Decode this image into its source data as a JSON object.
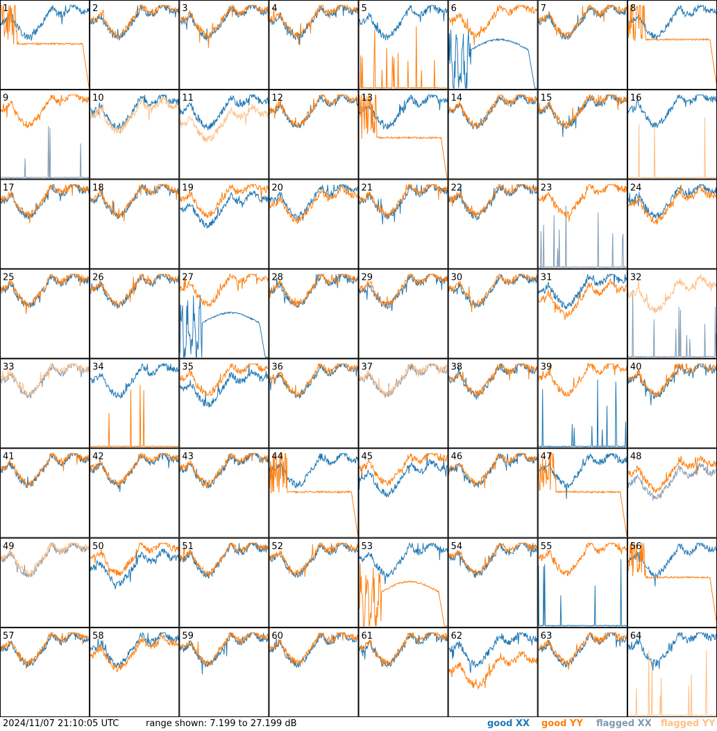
{
  "footer": {
    "timestamp": "2024/11/07 21:10:05 UTC",
    "range_text": "range shown: 7.199 to 27.199 dB"
  },
  "legend": {
    "good_xx": "good XX",
    "good_yy": "good YY",
    "flagged_xx": "flagged XX",
    "flagged_yy": "flagged YY"
  },
  "colors": {
    "good_xx": "#1f77b4",
    "good_yy": "#ff7f0e",
    "flagged_xx": "#7f99b2",
    "flagged_yy": "#ffbf86"
  },
  "chart_data": {
    "type": "line",
    "title": "",
    "xlabel": "",
    "ylabel": "",
    "ylim": [
      7.199,
      27.199
    ],
    "grid": "8x8 small multiples, no gridlines",
    "series_names": [
      "good XX",
      "good YY",
      "flagged XX",
      "flagged YY"
    ],
    "panels": [
      {
        "label": "1",
        "xx": "good",
        "yy": "good",
        "xx_shape": "bandpass",
        "yy_shape": "plateau",
        "xx_level": 0.6,
        "yy_level": 0.5
      },
      {
        "label": "2",
        "xx": "good",
        "yy": "good",
        "xx_shape": "bandpass",
        "yy_shape": "bandpass",
        "xx_level": 0.6,
        "yy_level": 0.62
      },
      {
        "label": "3",
        "xx": "good",
        "yy": "good",
        "xx_shape": "bandpass",
        "yy_shape": "bandpass",
        "xx_level": 0.6,
        "yy_level": 0.62
      },
      {
        "label": "4",
        "xx": "good",
        "yy": "good",
        "xx_shape": "bandpass",
        "yy_shape": "bandpass",
        "xx_level": 0.6,
        "yy_level": 0.62
      },
      {
        "label": "5",
        "xx": "good",
        "yy": "good",
        "xx_shape": "bandpass",
        "yy_shape": "spikes",
        "xx_level": 0.6,
        "yy_level": 0.0
      },
      {
        "label": "6",
        "xx": "good",
        "yy": "good",
        "xx_shape": "hump",
        "yy_shape": "bandpass",
        "xx_level": 0.45,
        "yy_level": 0.62
      },
      {
        "label": "7",
        "xx": "good",
        "yy": "good",
        "xx_shape": "bandpass",
        "yy_shape": "bandpass",
        "xx_level": 0.6,
        "yy_level": 0.62
      },
      {
        "label": "8",
        "xx": "good",
        "yy": "good",
        "xx_shape": "bandpass",
        "yy_shape": "plateau",
        "xx_level": 0.6,
        "yy_level": 0.55
      },
      {
        "label": "9",
        "xx": "flagged",
        "yy": "good",
        "xx_shape": "spikes",
        "yy_shape": "bandpass",
        "xx_level": 0.0,
        "yy_level": 0.62
      },
      {
        "label": "10",
        "xx": "good",
        "yy": "flagged",
        "xx_shape": "bandpass",
        "yy_shape": "bandpass",
        "xx_level": 0.6,
        "yy_level": 0.55
      },
      {
        "label": "11",
        "xx": "good",
        "yy": "flagged",
        "xx_shape": "bandpass",
        "yy_shape": "bandpass",
        "xx_level": 0.6,
        "yy_level": 0.45
      },
      {
        "label": "12",
        "xx": "good",
        "yy": "good",
        "xx_shape": "bandpass",
        "yy_shape": "bandpass",
        "xx_level": 0.6,
        "yy_level": 0.62
      },
      {
        "label": "13",
        "xx": "good",
        "yy": "good",
        "xx_shape": "bandpass",
        "yy_shape": "plateau",
        "xx_level": 0.6,
        "yy_level": 0.45
      },
      {
        "label": "14",
        "xx": "good",
        "yy": "good",
        "xx_shape": "bandpass",
        "yy_shape": "bandpass",
        "xx_level": 0.6,
        "yy_level": 0.62
      },
      {
        "label": "15",
        "xx": "good",
        "yy": "good",
        "xx_shape": "bandpass",
        "yy_shape": "bandpass",
        "xx_level": 0.6,
        "yy_level": 0.62
      },
      {
        "label": "16",
        "xx": "good",
        "yy": "flagged",
        "xx_shape": "bandpass",
        "yy_shape": "spikes",
        "xx_level": 0.62,
        "yy_level": 0.0
      },
      {
        "label": "17",
        "xx": "good",
        "yy": "good",
        "xx_shape": "bandpass",
        "yy_shape": "bandpass",
        "xx_level": 0.6,
        "yy_level": 0.62
      },
      {
        "label": "18",
        "xx": "good",
        "yy": "good",
        "xx_shape": "bandpass",
        "yy_shape": "bandpass",
        "xx_level": 0.6,
        "yy_level": 0.62
      },
      {
        "label": "19",
        "xx": "good",
        "yy": "good",
        "xx_shape": "bandpass",
        "yy_shape": "bandpass",
        "xx_level": 0.5,
        "yy_level": 0.62
      },
      {
        "label": "20",
        "xx": "good",
        "yy": "good",
        "xx_shape": "bandpass",
        "yy_shape": "bandpass",
        "xx_level": 0.6,
        "yy_level": 0.55
      },
      {
        "label": "21",
        "xx": "good",
        "yy": "good",
        "xx_shape": "bandpass",
        "yy_shape": "bandpass",
        "xx_level": 0.6,
        "yy_level": 0.62
      },
      {
        "label": "22",
        "xx": "good",
        "yy": "good",
        "xx_shape": "bandpass",
        "yy_shape": "bandpass",
        "xx_level": 0.6,
        "yy_level": 0.62
      },
      {
        "label": "23",
        "xx": "flagged",
        "yy": "good",
        "xx_shape": "spikes",
        "yy_shape": "bandpass",
        "xx_level": 0.0,
        "yy_level": 0.62
      },
      {
        "label": "24",
        "xx": "good",
        "yy": "good",
        "xx_shape": "bandpass",
        "yy_shape": "bandpass",
        "xx_level": 0.6,
        "yy_level": 0.55
      },
      {
        "label": "25",
        "xx": "good",
        "yy": "good",
        "xx_shape": "bandpass",
        "yy_shape": "bandpass",
        "xx_level": 0.6,
        "yy_level": 0.62
      },
      {
        "label": "26",
        "xx": "good",
        "yy": "good",
        "xx_shape": "bandpass",
        "yy_shape": "bandpass",
        "xx_level": 0.6,
        "yy_level": 0.62
      },
      {
        "label": "27",
        "xx": "good",
        "yy": "good",
        "xx_shape": "hump",
        "yy_shape": "bandpass",
        "xx_level": 0.4,
        "yy_level": 0.62
      },
      {
        "label": "28",
        "xx": "good",
        "yy": "good",
        "xx_shape": "bandpass",
        "yy_shape": "bandpass",
        "xx_level": 0.6,
        "yy_level": 0.62
      },
      {
        "label": "29",
        "xx": "good",
        "yy": "good",
        "xx_shape": "bandpass",
        "yy_shape": "bandpass",
        "xx_level": 0.6,
        "yy_level": 0.62
      },
      {
        "label": "30",
        "xx": "good",
        "yy": "good",
        "xx_shape": "bandpass",
        "yy_shape": "bandpass",
        "xx_level": 0.6,
        "yy_level": 0.62
      },
      {
        "label": "31",
        "xx": "good",
        "yy": "good",
        "xx_shape": "bandpass",
        "yy_shape": "bandpass",
        "xx_level": 0.6,
        "yy_level": 0.5
      },
      {
        "label": "32",
        "xx": "flagged",
        "yy": "flagged",
        "xx_shape": "spikes",
        "yy_shape": "bandpass",
        "xx_level": 0.0,
        "yy_level": 0.55
      },
      {
        "label": "33",
        "xx": "flagged",
        "yy": "flagged",
        "xx_shape": "bandpass",
        "yy_shape": "bandpass",
        "xx_level": 0.6,
        "yy_level": 0.62
      },
      {
        "label": "34",
        "xx": "good",
        "yy": "good",
        "xx_shape": "bandpass",
        "yy_shape": "spikes",
        "xx_level": 0.6,
        "yy_level": 0.0
      },
      {
        "label": "35",
        "xx": "good",
        "yy": "good",
        "xx_shape": "bandpass",
        "yy_shape": "bandpass",
        "xx_level": 0.5,
        "yy_level": 0.62
      },
      {
        "label": "36",
        "xx": "good",
        "yy": "good",
        "xx_shape": "bandpass",
        "yy_shape": "bandpass",
        "xx_level": 0.6,
        "yy_level": 0.62
      },
      {
        "label": "37",
        "xx": "flagged",
        "yy": "flagged",
        "xx_shape": "bandpass",
        "yy_shape": "bandpass",
        "xx_level": 0.6,
        "yy_level": 0.62
      },
      {
        "label": "38",
        "xx": "good",
        "yy": "good",
        "xx_shape": "bandpass",
        "yy_shape": "bandpass",
        "xx_level": 0.6,
        "yy_level": 0.62
      },
      {
        "label": "39",
        "xx": "good",
        "yy": "good",
        "xx_shape": "spikes",
        "yy_shape": "bandpass",
        "xx_level": 0.0,
        "yy_level": 0.62
      },
      {
        "label": "40",
        "xx": "good",
        "yy": "good",
        "xx_shape": "bandpass",
        "yy_shape": "bandpass",
        "xx_level": 0.6,
        "yy_level": 0.62
      },
      {
        "label": "41",
        "xx": "good",
        "yy": "good",
        "xx_shape": "bandpass",
        "yy_shape": "bandpass",
        "xx_level": 0.6,
        "yy_level": 0.62
      },
      {
        "label": "42",
        "xx": "good",
        "yy": "good",
        "xx_shape": "bandpass",
        "yy_shape": "bandpass",
        "xx_level": 0.6,
        "yy_level": 0.62
      },
      {
        "label": "43",
        "xx": "good",
        "yy": "good",
        "xx_shape": "bandpass",
        "yy_shape": "bandpass",
        "xx_level": 0.6,
        "yy_level": 0.62
      },
      {
        "label": "44",
        "xx": "good",
        "yy": "good",
        "xx_shape": "bandpass",
        "yy_shape": "plateau",
        "xx_level": 0.6,
        "yy_level": 0.5
      },
      {
        "label": "45",
        "xx": "good",
        "yy": "good",
        "xx_shape": "bandpass",
        "yy_shape": "bandpass",
        "xx_level": 0.5,
        "yy_level": 0.62
      },
      {
        "label": "46",
        "xx": "good",
        "yy": "good",
        "xx_shape": "bandpass",
        "yy_shape": "bandpass",
        "xx_level": 0.6,
        "yy_level": 0.62
      },
      {
        "label": "47",
        "xx": "good",
        "yy": "good",
        "xx_shape": "bandpass",
        "yy_shape": "plateau",
        "xx_level": 0.6,
        "yy_level": 0.5
      },
      {
        "label": "48",
        "xx": "flagged",
        "yy": "good",
        "xx_shape": "bandpass",
        "yy_shape": "bandpass",
        "xx_level": 0.45,
        "yy_level": 0.55
      },
      {
        "label": "49",
        "xx": "flagged",
        "yy": "flagged",
        "xx_shape": "bandpass",
        "yy_shape": "bandpass",
        "xx_level": 0.6,
        "yy_level": 0.62
      },
      {
        "label": "50",
        "xx": "good",
        "yy": "good",
        "xx_shape": "bandpass",
        "yy_shape": "bandpass",
        "xx_level": 0.5,
        "yy_level": 0.62
      },
      {
        "label": "51",
        "xx": "good",
        "yy": "good",
        "xx_shape": "bandpass",
        "yy_shape": "bandpass",
        "xx_level": 0.6,
        "yy_level": 0.62
      },
      {
        "label": "52",
        "xx": "good",
        "yy": "good",
        "xx_shape": "bandpass",
        "yy_shape": "bandpass",
        "xx_level": 0.6,
        "yy_level": 0.62
      },
      {
        "label": "53",
        "xx": "good",
        "yy": "good",
        "xx_shape": "bandpass",
        "yy_shape": "hump",
        "xx_level": 0.6,
        "yy_level": 0.4
      },
      {
        "label": "54",
        "xx": "good",
        "yy": "good",
        "xx_shape": "bandpass",
        "yy_shape": "bandpass",
        "xx_level": 0.6,
        "yy_level": 0.62
      },
      {
        "label": "55",
        "xx": "good",
        "yy": "good",
        "xx_shape": "spikes",
        "yy_shape": "bandpass",
        "xx_level": 0.0,
        "yy_level": 0.62
      },
      {
        "label": "56",
        "xx": "good",
        "yy": "good",
        "xx_shape": "bandpass",
        "yy_shape": "plateau",
        "xx_level": 0.6,
        "yy_level": 0.55
      },
      {
        "label": "57",
        "xx": "good",
        "yy": "good",
        "xx_shape": "bandpass",
        "yy_shape": "bandpass",
        "xx_level": 0.6,
        "yy_level": 0.62
      },
      {
        "label": "58",
        "xx": "good",
        "yy": "good",
        "xx_shape": "bandpass",
        "yy_shape": "bandpass",
        "xx_level": 0.6,
        "yy_level": 0.55
      },
      {
        "label": "59",
        "xx": "good",
        "yy": "good",
        "xx_shape": "bandpass",
        "yy_shape": "bandpass",
        "xx_level": 0.6,
        "yy_level": 0.62
      },
      {
        "label": "60",
        "xx": "good",
        "yy": "good",
        "xx_shape": "bandpass",
        "yy_shape": "bandpass",
        "xx_level": 0.6,
        "yy_level": 0.62
      },
      {
        "label": "61",
        "xx": "good",
        "yy": "good",
        "xx_shape": "bandpass",
        "yy_shape": "bandpass",
        "xx_level": 0.6,
        "yy_level": 0.62
      },
      {
        "label": "62",
        "xx": "good",
        "yy": "good",
        "xx_shape": "bandpass",
        "yy_shape": "bandpass",
        "xx_level": 0.6,
        "yy_level": 0.35
      },
      {
        "label": "63",
        "xx": "good",
        "yy": "good",
        "xx_shape": "bandpass",
        "yy_shape": "bandpass",
        "xx_level": 0.6,
        "yy_level": 0.62
      },
      {
        "label": "64",
        "xx": "good",
        "yy": "flagged",
        "xx_shape": "bandpass",
        "yy_shape": "spikes",
        "xx_level": 0.62,
        "yy_level": 0.0
      }
    ]
  }
}
